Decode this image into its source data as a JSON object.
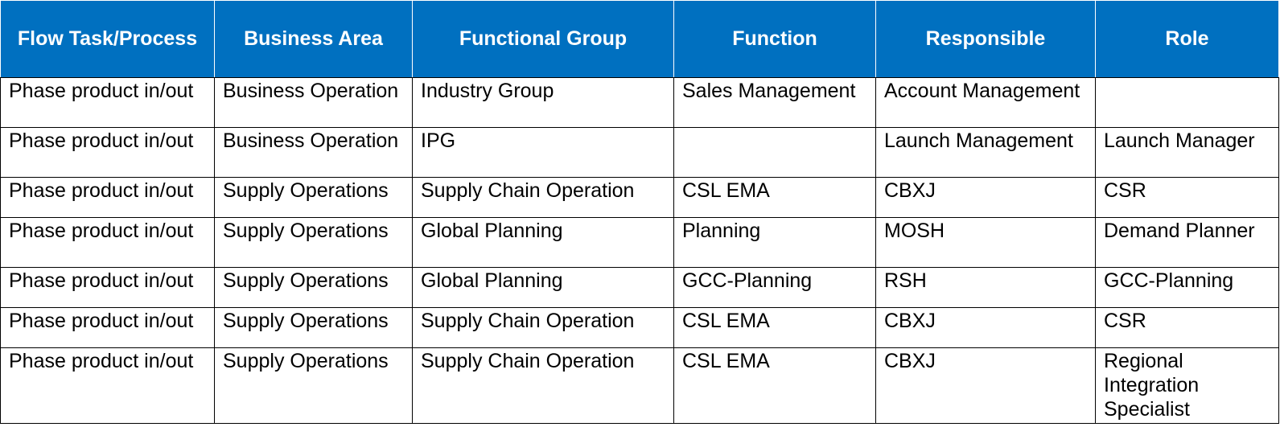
{
  "table": {
    "columns": [
      "Flow Task/Process",
      "Business Area",
      "Functional Group",
      "Function",
      "Responsible",
      "Role"
    ],
    "rows": [
      [
        "Phase product in/out",
        "Business Operation",
        "Industry Group",
        "Sales Management",
        "Account Management",
        ""
      ],
      [
        "Phase product in/out",
        "Business Operation",
        "IPG",
        "",
        "Launch Management",
        "Launch Manager"
      ],
      [
        "Phase product in/out",
        "Supply Operations",
        "Supply Chain Operation",
        "CSL EMA",
        "CBXJ",
        "CSR"
      ],
      [
        "Phase product in/out",
        "Supply Operations",
        "Global Planning",
        "Planning",
        "MOSH",
        "Demand Planner"
      ],
      [
        "Phase product in/out",
        "Supply Operations",
        "Global Planning",
        "GCC-Planning",
        "RSH",
        "GCC-Planning"
      ],
      [
        "Phase product in/out",
        "Supply Operations",
        "Supply Chain Operation",
        "CSL EMA",
        "CBXJ",
        "CSR"
      ],
      [
        "Phase product in/out",
        "Supply Operations",
        "Supply Chain Operation",
        "CSL EMA",
        "CBXJ",
        "Regional Integration Specialist"
      ]
    ],
    "colors": {
      "header_bg": "#0070c0",
      "header_text": "#ffffff",
      "grid": "#000000"
    }
  }
}
